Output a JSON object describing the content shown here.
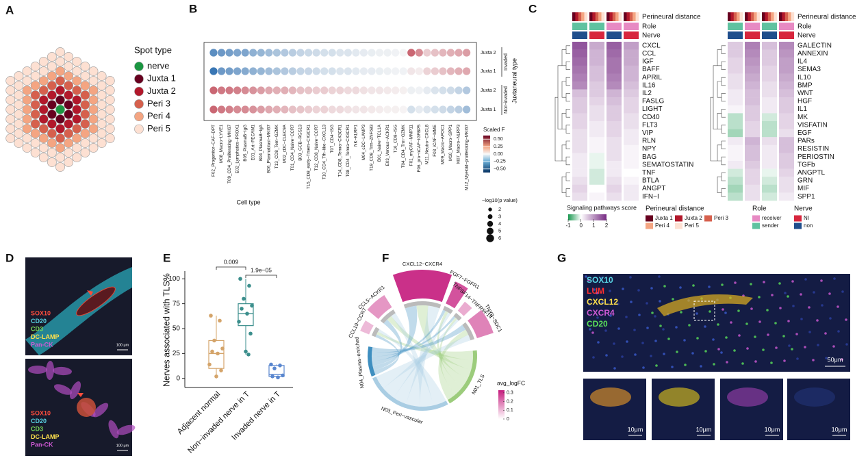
{
  "letters": [
    "A",
    "B",
    "C",
    "D",
    "E",
    "F",
    "G"
  ],
  "spot_legend": {
    "title": "Spot type",
    "items": [
      {
        "name": "nerve",
        "color": "#1a9641"
      },
      {
        "name": "Juxta 1",
        "color": "#67001f"
      },
      {
        "name": "Juxta 2",
        "color": "#b2182b"
      },
      {
        "name": "Peri 3",
        "color": "#d6604d"
      },
      {
        "name": "Peri 4",
        "color": "#f4a582"
      },
      {
        "name": "Peri 5",
        "color": "#fde0d2"
      }
    ]
  },
  "chart_data": [
    {
      "type": "dot",
      "xlabel": "Cell type",
      "groups": [
        "Invaded",
        "Non-invaded"
      ],
      "group_title": "Juxtaneural type",
      "categories": [
        "F02_Progenitor−CAF−DPT",
        "M08_Macro−LYVE1",
        "T09_CD4_Proliferating−MKI67",
        "E02_Lymphatics−PROX1",
        "B05_PlasmaB−IgG",
        "E01_Art−PECAM1",
        "B04_PlasmaB−IgA",
        "B06_Plasmablast−MKI67",
        "T13_CD8_Tem−GZMK",
        "M02_cDC−CLEC9A",
        "T01_CD4_Naive−CCR7",
        "B03_GCB−RGS13",
        "T15_CD8_early−Tmem−CX3CR1",
        "T12_CD8_Naive−CCR7",
        "T10_CD4_Tfh−like−CXCL13",
        "T07_CD4−ISG",
        "T14_CD8_Temra−CX3CR1",
        "T08_CD4_Temra−CX3CR1",
        "NK−KLRF1",
        "M04_cDC−LAMP3",
        "T19_CD8_Trm−ZNF683",
        "B01_Naive−TCL1A",
        "E03_Venous−ACKR1",
        "T16_CD8−ISG",
        "T04_CD4_Trm−GZMK",
        "F01_myCAF−MMP11",
        "F06_pro−nCAF−IGFBP5",
        "M11_Neutro−CXCL8",
        "F03_iCAF−MME",
        "M09_Macro−APOC1",
        "M10_Macro−SPP1",
        "M07_Macro−NLRP3",
        "M12_Myeloid−proliferating−MKI67"
      ],
      "series": [
        {
          "name": "Juxta 2",
          "values": [
            -0.45,
            -0.4,
            -0.38,
            -0.35,
            -0.35,
            -0.3,
            -0.28,
            -0.25,
            -0.22,
            -0.2,
            -0.18,
            -0.15,
            -0.13,
            -0.12,
            -0.1,
            -0.1,
            -0.08,
            -0.08,
            -0.06,
            -0.05,
            -0.04,
            -0.03,
            -0.03,
            -0.02,
            -0.01,
            0.4,
            0.3,
            0.12,
            0.15,
            0.18,
            0.2,
            0.22,
            0.25
          ]
        },
        {
          "name": "Juxta 1",
          "values": [
            -0.55,
            -0.4,
            -0.38,
            -0.35,
            -0.33,
            -0.3,
            -0.28,
            -0.25,
            -0.22,
            -0.2,
            -0.18,
            -0.15,
            -0.14,
            -0.12,
            -0.1,
            -0.1,
            -0.08,
            -0.08,
            -0.06,
            -0.05,
            -0.05,
            -0.04,
            -0.03,
            -0.02,
            -0.02,
            0.05,
            0.03,
            0.1,
            0.12,
            0.15,
            0.18,
            0.2,
            0.22
          ]
        },
        {
          "name": "Juxta 2",
          "values": [
            0.4,
            0.35,
            0.35,
            0.33,
            0.3,
            0.28,
            0.25,
            0.22,
            0.2,
            0.2,
            0.18,
            0.15,
            0.14,
            0.12,
            0.12,
            0.1,
            0.1,
            0.08,
            0.08,
            0.06,
            0.05,
            0.05,
            0.04,
            0.03,
            0.02,
            -0.03,
            -0.02,
            -0.05,
            -0.08,
            -0.1,
            -0.12,
            -0.15,
            -0.2
          ]
        },
        {
          "name": "Juxta 1",
          "values": [
            0.4,
            0.35,
            0.33,
            0.3,
            0.3,
            0.28,
            0.25,
            0.22,
            0.2,
            0.18,
            0.15,
            0.14,
            0.12,
            0.1,
            0.1,
            0.08,
            0.08,
            0.06,
            0.05,
            0.05,
            0.04,
            0.03,
            0.02,
            0.02,
            0.01,
            -0.1,
            -0.05,
            -0.08,
            -0.1,
            -0.12,
            -0.15,
            -0.18,
            -0.25
          ]
        }
      ],
      "colorbar_title": "Scaled F",
      "clim": [
        -0.62,
        0.62
      ],
      "cticks": [
        {
          "value": 0.5,
          "label": "0.50"
        },
        0.25,
        {
          "value": 0,
          "label": "0.00"
        },
        {
          "value": -0.25,
          "label": "−0.25"
        },
        {
          "value": -0.5,
          "label": "−0.50"
        }
      ],
      "size_title": "−log10(p value)",
      "size_ticks": [
        2,
        3,
        4,
        5,
        6
      ]
    },
    {
      "type": "heatmap",
      "annotation_rows": [
        "Perineural distance",
        "Role",
        "Nerve"
      ],
      "column_groups": [
        {
          "role": "sender",
          "nerve": "non"
        },
        {
          "role": "sender",
          "nerve": "NI"
        },
        {
          "role": "receiver",
          "nerve": "non"
        },
        {
          "role": "receiver",
          "nerve": "NI"
        }
      ],
      "rows": [
        "CXCL",
        "CCL",
        "IGF",
        "BAFF",
        "APRIL",
        "IL16",
        "IL2",
        "FASLG",
        "LIGHT",
        "CD40",
        "FLT3",
        "VIP",
        "RLN",
        "NPY",
        "BAG",
        "SEMATOSTATIN",
        "TNF",
        "BTLA",
        "ANGPT",
        "IFN−I"
      ],
      "values": [
        [
          1.6,
          0.8,
          1.5,
          0.9
        ],
        [
          1.5,
          0.7,
          1.4,
          0.8
        ],
        [
          1.4,
          0.7,
          1.3,
          0.8
        ],
        [
          1.3,
          0.6,
          1.3,
          0.7
        ],
        [
          1.2,
          0.6,
          1.2,
          0.7
        ],
        [
          1.1,
          0.5,
          1.1,
          0.6
        ],
        [
          0.6,
          0.5,
          0.7,
          0.5
        ],
        [
          0.5,
          0.4,
          0.6,
          0.4
        ],
        [
          0.5,
          0.3,
          0.5,
          0.4
        ],
        [
          0.4,
          0.3,
          0.5,
          0.3
        ],
        [
          0.4,
          0.2,
          0.4,
          0.3
        ],
        [
          0.3,
          0.2,
          0.4,
          0.2
        ],
        [
          0.3,
          0.1,
          0.3,
          0.2
        ],
        [
          0.3,
          0.1,
          0.3,
          0.1
        ],
        [
          0.2,
          -0.1,
          0.3,
          0.1
        ],
        [
          0.2,
          -0.1,
          0.2,
          0.1
        ],
        [
          0.2,
          -0.2,
          0.2,
          0.0
        ],
        [
          0.3,
          -0.2,
          0.3,
          0.1
        ],
        [
          0.4,
          0.0,
          0.4,
          0.2
        ],
        [
          0.3,
          0.1,
          0.3,
          0.2
        ]
      ]
    },
    {
      "type": "heatmap",
      "annotation_rows": [
        "Perineural distance",
        "Role",
        "Nerve"
      ],
      "column_groups": [
        {
          "role": "sender",
          "nerve": "non"
        },
        {
          "role": "receiver",
          "nerve": "NI"
        },
        {
          "role": "sender",
          "nerve": "non"
        },
        {
          "role": "receiver",
          "nerve": "NI"
        }
      ],
      "rows": [
        "GALECTIN",
        "ANNEXIN",
        "IL4",
        "SEMA3",
        "IL10",
        "BMP",
        "WNT",
        "HGF",
        "IL1",
        "MK",
        "VISFATIN",
        "EGF",
        "PARs",
        "RESISTIN",
        "PERIOSTIN",
        "TGFb",
        "ANGPTL",
        "GRN",
        "MIF",
        "SPP1"
      ],
      "values": [
        [
          0.5,
          1.2,
          0.6,
          1.1
        ],
        [
          0.5,
          1.1,
          0.5,
          1.0
        ],
        [
          0.4,
          1.0,
          0.5,
          0.9
        ],
        [
          0.4,
          0.9,
          0.4,
          0.9
        ],
        [
          0.3,
          0.8,
          0.4,
          0.8
        ],
        [
          0.3,
          0.7,
          0.3,
          0.7
        ],
        [
          0.2,
          0.6,
          0.3,
          0.6
        ],
        [
          0.2,
          0.6,
          0.2,
          0.5
        ],
        [
          0.1,
          0.5,
          0.2,
          0.5
        ],
        [
          -0.3,
          0.5,
          -0.2,
          0.4
        ],
        [
          -0.3,
          0.4,
          -0.3,
          0.4
        ],
        [
          -0.4,
          0.4,
          -0.3,
          0.3
        ],
        [
          0.2,
          0.7,
          0.3,
          0.6
        ],
        [
          0.1,
          0.6,
          0.2,
          0.6
        ],
        [
          0.1,
          0.6,
          0.2,
          0.5
        ],
        [
          0.2,
          0.5,
          0.2,
          0.5
        ],
        [
          -0.2,
          0.4,
          -0.1,
          0.4
        ],
        [
          -0.3,
          0.4,
          -0.2,
          0.3
        ],
        [
          -0.4,
          0.3,
          -0.3,
          0.3
        ],
        [
          -0.3,
          0.3,
          -0.2,
          0.2
        ]
      ]
    },
    {
      "type": "box",
      "ylabel": "Nerves associated with TLS%",
      "categories": [
        "Adjacent normal",
        "Non−invaded nerve in T",
        "Invaded nerve in T"
      ],
      "colors": [
        "#d4a46a",
        "#3b8e8c",
        "#5a87cf"
      ],
      "boxes": [
        {
          "min": 0,
          "q1": 10,
          "median": 25,
          "q3": 38,
          "max": 63
        },
        {
          "min": 24,
          "q1": 53,
          "median": 65,
          "q3": 75,
          "max": 100
        },
        {
          "min": 0,
          "q1": 2,
          "median": 4,
          "q3": 13,
          "max": 14
        }
      ],
      "points": [
        [
          63,
          58,
          38,
          30,
          27,
          25,
          14,
          8,
          2
        ],
        [
          100,
          93,
          80,
          73,
          70,
          65,
          57,
          45,
          27,
          24
        ],
        [
          14,
          13,
          10,
          3,
          2,
          1
        ]
      ],
      "pvalues": [
        "0.009",
        "1.9e−05"
      ],
      "ylim": [
        -5,
        105
      ],
      "yticks": [
        0,
        25,
        50,
        75,
        100
      ]
    },
    {
      "type": "chord",
      "pairs": [
        {
          "name": "CCL19−CCR7",
          "value": 0.1
        },
        {
          "name": "CCL5−ACKR1",
          "value": 0.15
        },
        {
          "name": "CXCL12−CXCR4",
          "value": 0.3
        },
        {
          "name": "FGF7−FGFR1",
          "value": 0.25
        },
        {
          "name": "TNFSF14−TNFRSF14",
          "value": 0.12
        },
        {
          "name": "TNXB−SDC1",
          "value": 0.18
        }
      ],
      "groups": [
        {
          "name": "N04_Plasma−enriched",
          "color": "#3f8fc0"
        },
        {
          "name": "N01_TLS",
          "color": "#9ccc7c"
        },
        {
          "name": "N03_Peri−vascular",
          "color": "#a9cde3"
        }
      ],
      "colorbar_title": "avg_logFC",
      "clim": [
        0,
        0.33
      ],
      "cticks": [
        0.3,
        0.2,
        0.1,
        0
      ]
    }
  ],
  "heatmap_legend": {
    "score_title": "Signaling pathways score",
    "score_ticks": [
      -1,
      0,
      1,
      2
    ],
    "clim": [
      -1,
      2
    ],
    "distance_title": "Perineural distance",
    "distances": [
      {
        "name": "Juxta 1",
        "color": "#67001f"
      },
      {
        "name": "Juxta 2",
        "color": "#b2182b"
      },
      {
        "name": "Peri 3",
        "color": "#d6604d"
      },
      {
        "name": "Peri 4",
        "color": "#f4a582"
      },
      {
        "name": "Peri 5",
        "color": "#fde0d2"
      }
    ],
    "role_title": "Role",
    "roles": [
      {
        "name": "receiver",
        "color": "#e78ac3"
      },
      {
        "name": "sender",
        "color": "#5fc2a0"
      }
    ],
    "nerve_title": "Nerve",
    "nerves": [
      {
        "name": "NI",
        "color": "#d7263d"
      },
      {
        "name": "non",
        "color": "#1f4e8c"
      }
    ]
  },
  "panel_D": {
    "channels": [
      {
        "name": "SOX10",
        "color": "#ff4d3d"
      },
      {
        "name": "CD20",
        "color": "#5ad6e6"
      },
      {
        "name": "CD3",
        "color": "#7ee05a"
      },
      {
        "name": "DC-LAMP",
        "color": "#ffe14d"
      },
      {
        "name": "Pan-CK",
        "color": "#d05ad6"
      }
    ],
    "scale_labels": [
      "100 μm",
      "100 μm"
    ]
  },
  "panel_G": {
    "channels": [
      {
        "name": "SOX10",
        "color": "#5ad6e6"
      },
      {
        "name": "LUM",
        "color": "#ff3030"
      },
      {
        "name": "CXCL12",
        "color": "#ffe14d"
      },
      {
        "name": "CXCR4",
        "color": "#d05ad6"
      },
      {
        "name": "CD20",
        "color": "#5ae05a"
      }
    ],
    "scale_labels": [
      "50μm",
      "10μm",
      "10μm",
      "10μm",
      "10μm"
    ]
  }
}
